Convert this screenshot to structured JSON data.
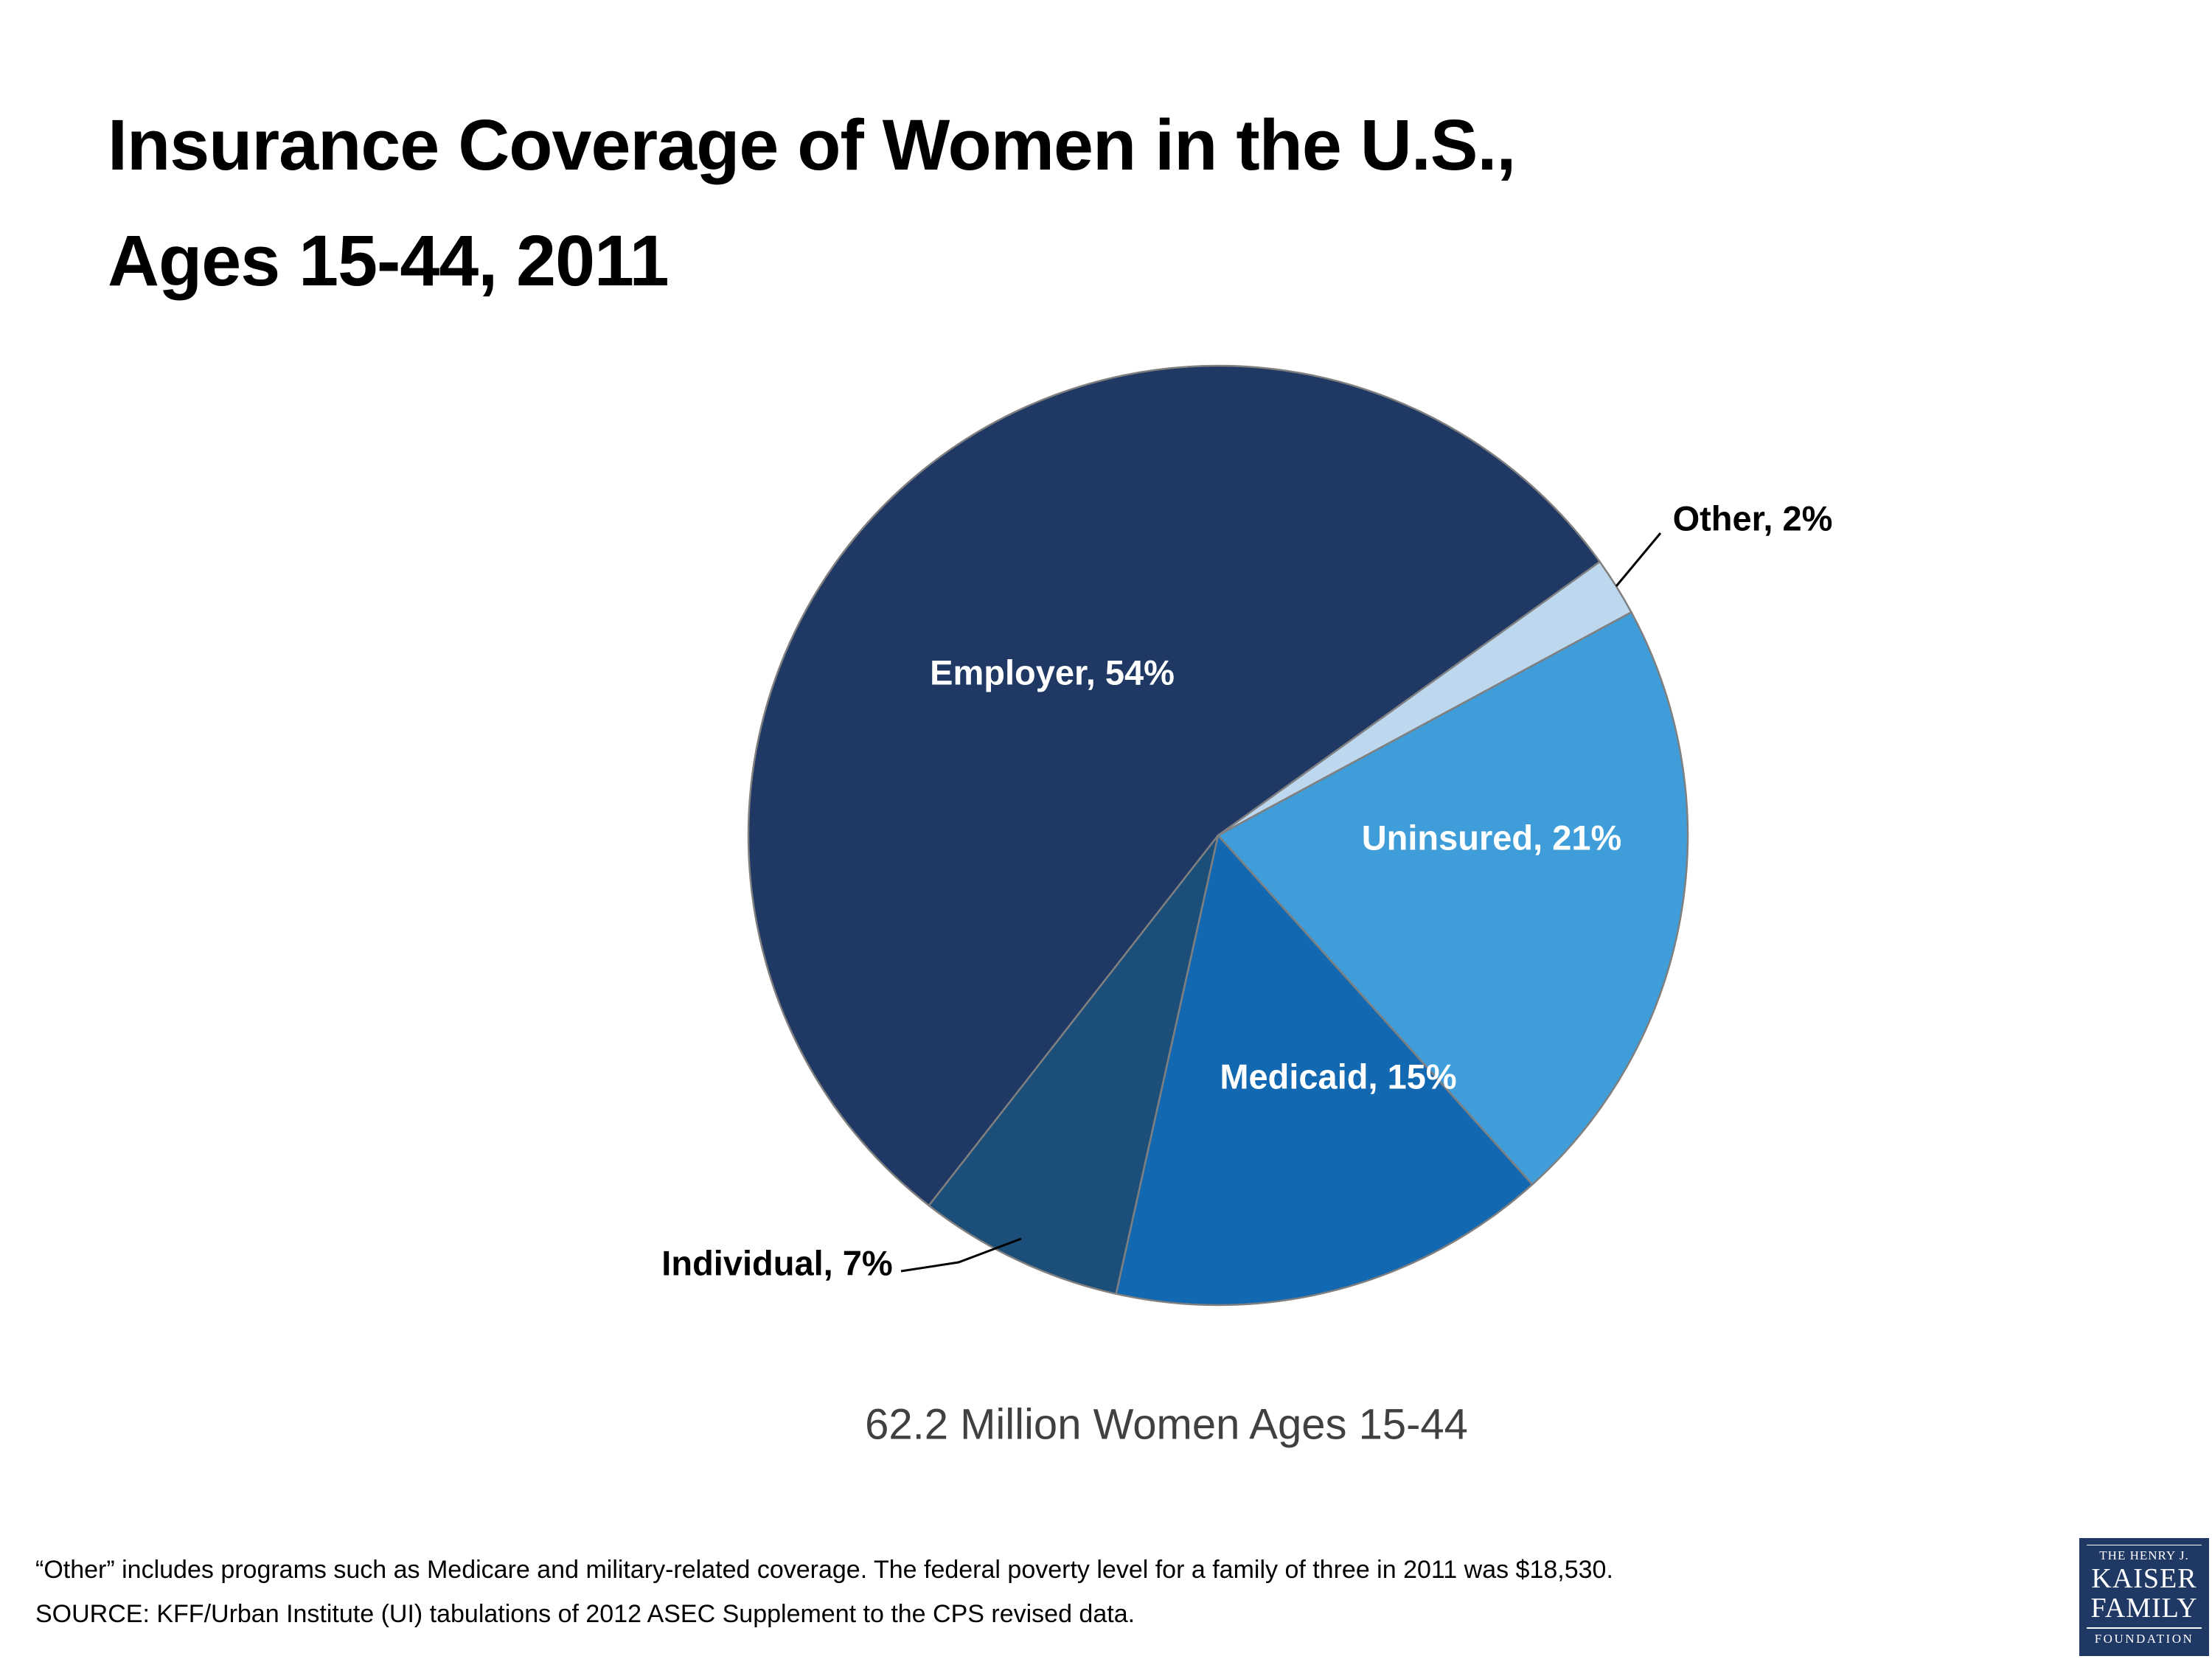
{
  "title_lines": [
    "Insurance Coverage of Women in the U.S.,",
    "Ages 15-44, 2011"
  ],
  "chart_data": {
    "type": "pie",
    "title": "Insurance Coverage of Women in the U.S., Ages 15-44, 2011",
    "subtitle": "62.2 Million Women Ages 15-44",
    "values_unit": "%",
    "direction": "clockwise",
    "start_angle_deg": 218,
    "stroke_color": "#7F7F7F",
    "background": "#FFFFFF",
    "slices": [
      {
        "name": "Employer",
        "value": 54,
        "label": "Employer, 54%",
        "color": "#1F3864",
        "label_inside": true
      },
      {
        "name": "Other",
        "value": 2,
        "label": "Other, 2%",
        "color": "#BDD7EE",
        "label_inside": false
      },
      {
        "name": "Uninsured",
        "value": 21,
        "label": "Uninsured, 21%",
        "color": "#3F9EDA",
        "label_inside": true
      },
      {
        "name": "Medicaid",
        "value": 15,
        "label": "Medicaid, 15%",
        "color": "#1268B1",
        "label_inside": true
      },
      {
        "name": "Individual",
        "value": 7,
        "label": "Individual, 7%",
        "color": "#1B4E79",
        "label_inside": false
      }
    ],
    "label_color_inside": "#FFFFFF",
    "label_color_outside": "#000000"
  },
  "footnote_lines": [
    "“Other” includes programs such as Medicare and military-related coverage. The federal poverty level for a family of three in 2011 was $18,530.",
    "SOURCE: KFF/Urban Institute (UI) tabulations of 2012 ASEC Supplement to the CPS revised data."
  ],
  "logo": {
    "top": "THE HENRY J.",
    "name1": "KAISER",
    "name2": "FAMILY",
    "bottom": "FOUNDATION",
    "background_color": "#1F3864"
  }
}
